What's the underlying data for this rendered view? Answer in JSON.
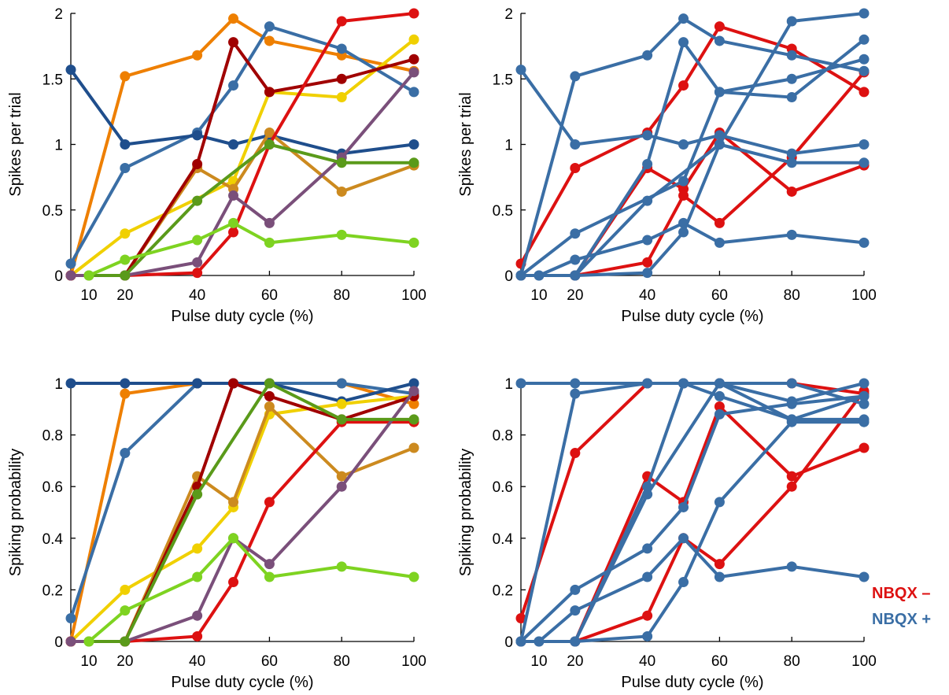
{
  "chart_data": [
    {
      "type": "line",
      "panel": "top-left",
      "xlabel": "Pulse duty cycle (%)",
      "ylabel": "Spikes per trial",
      "xlim": [
        5,
        100
      ],
      "ylim": [
        0,
        2
      ],
      "xticks": [
        10,
        20,
        40,
        60,
        80,
        100
      ],
      "yticks": [
        0,
        0.5,
        1,
        1.5,
        2
      ],
      "series": [
        {
          "color": "#ee7f00",
          "x": [
            5,
            20,
            40,
            50,
            60,
            80,
            100
          ],
          "y": [
            0,
            1.52,
            1.68,
            1.96,
            1.79,
            1.68,
            1.56
          ]
        },
        {
          "color": "#3a6ea5",
          "x": [
            5,
            20,
            40,
            50,
            60,
            80,
            100
          ],
          "y": [
            0.09,
            0.82,
            1.09,
            1.45,
            1.9,
            1.73,
            1.4
          ]
        },
        {
          "color": "#1f4e8c",
          "x": [
            5,
            20,
            40,
            50,
            60,
            80,
            100
          ],
          "y": [
            1.57,
            1.0,
            1.07,
            1.0,
            1.07,
            0.93,
            1.0
          ]
        },
        {
          "color": "#f0d000",
          "x": [
            5,
            20,
            50,
            60,
            80,
            100
          ],
          "y": [
            0,
            0.32,
            0.72,
            1.4,
            1.36,
            1.8
          ]
        },
        {
          "color": "#cc8a1f",
          "x": [
            5,
            20,
            40,
            50,
            60,
            80,
            100
          ],
          "y": [
            0,
            0,
            0.82,
            0.66,
            1.09,
            0.64,
            0.84
          ]
        },
        {
          "color": "#a00000",
          "x": [
            5,
            20,
            40,
            50,
            60,
            80,
            100
          ],
          "y": [
            0,
            0,
            0.85,
            1.78,
            1.4,
            1.5,
            1.65
          ]
        },
        {
          "color": "#dd1111",
          "x": [
            5,
            20,
            40,
            50,
            60,
            80,
            100
          ],
          "y": [
            0,
            0,
            0.02,
            0.33,
            1.0,
            1.94,
            2.0
          ]
        },
        {
          "color": "#7a4f7a",
          "x": [
            5,
            20,
            40,
            50,
            60,
            80,
            100
          ],
          "y": [
            0,
            0,
            0.1,
            0.61,
            0.4,
            0.9,
            1.55
          ]
        },
        {
          "color": "#5a9a1a",
          "x": [
            10,
            20,
            40,
            60,
            80,
            100
          ],
          "y": [
            0,
            0,
            0.57,
            1.0,
            0.86,
            0.86
          ]
        },
        {
          "color": "#7ed321",
          "x": [
            10,
            20,
            40,
            50,
            60,
            80,
            100
          ],
          "y": [
            0,
            0.12,
            0.27,
            0.4,
            0.25,
            0.31,
            0.25
          ]
        }
      ]
    },
    {
      "type": "line",
      "panel": "top-right",
      "xlabel": "Pulse duty cycle (%)",
      "ylabel": "Spikes per trial",
      "xlim": [
        5,
        100
      ],
      "ylim": [
        0,
        2
      ],
      "xticks": [
        10,
        20,
        40,
        60,
        80,
        100
      ],
      "yticks": [
        0,
        0.5,
        1,
        1.5,
        2
      ],
      "series": [
        {
          "group": "NBQX –",
          "color": "#dd1111",
          "x": [
            5,
            20,
            40,
            50,
            60,
            80,
            100
          ],
          "y": [
            0.09,
            0.82,
            1.09,
            1.45,
            1.9,
            1.73,
            1.4
          ]
        },
        {
          "group": "NBQX –",
          "color": "#dd1111",
          "x": [
            5,
            20,
            40,
            50,
            60,
            80,
            100
          ],
          "y": [
            0,
            0,
            0.82,
            0.66,
            1.09,
            0.64,
            0.84
          ]
        },
        {
          "group": "NBQX –",
          "color": "#dd1111",
          "x": [
            5,
            20,
            40,
            50,
            60,
            80,
            100
          ],
          "y": [
            0,
            0,
            0.1,
            0.61,
            0.4,
            0.9,
            1.55
          ]
        },
        {
          "group": "NBQX +",
          "color": "#3a6ea5",
          "x": [
            5,
            20,
            40,
            50,
            60,
            80,
            100
          ],
          "y": [
            0,
            1.52,
            1.68,
            1.96,
            1.79,
            1.68,
            1.56
          ]
        },
        {
          "group": "NBQX +",
          "color": "#3a6ea5",
          "x": [
            5,
            20,
            40,
            50,
            60,
            80,
            100
          ],
          "y": [
            1.57,
            1.0,
            1.07,
            1.0,
            1.07,
            0.93,
            1.0
          ]
        },
        {
          "group": "NBQX +",
          "color": "#3a6ea5",
          "x": [
            5,
            20,
            50,
            60,
            80,
            100
          ],
          "y": [
            0,
            0.32,
            0.72,
            1.4,
            1.36,
            1.8
          ]
        },
        {
          "group": "NBQX +",
          "color": "#3a6ea5",
          "x": [
            5,
            20,
            40,
            50,
            60,
            80,
            100
          ],
          "y": [
            0,
            0,
            0.85,
            1.78,
            1.4,
            1.5,
            1.65
          ]
        },
        {
          "group": "NBQX +",
          "color": "#3a6ea5",
          "x": [
            5,
            20,
            40,
            50,
            60,
            80,
            100
          ],
          "y": [
            0,
            0,
            0.02,
            0.33,
            1.0,
            1.94,
            2.0
          ]
        },
        {
          "group": "NBQX +",
          "color": "#3a6ea5",
          "x": [
            10,
            20,
            40,
            60,
            80,
            100
          ],
          "y": [
            0,
            0,
            0.57,
            1.0,
            0.86,
            0.86
          ]
        },
        {
          "group": "NBQX +",
          "color": "#3a6ea5",
          "x": [
            10,
            20,
            40,
            50,
            60,
            80,
            100
          ],
          "y": [
            0,
            0.12,
            0.27,
            0.4,
            0.25,
            0.31,
            0.25
          ]
        }
      ]
    },
    {
      "type": "line",
      "panel": "bottom-left",
      "xlabel": "Pulse duty cycle (%)",
      "ylabel": "Spiking probability",
      "xlim": [
        5,
        100
      ],
      "ylim": [
        0,
        1
      ],
      "xticks": [
        10,
        20,
        40,
        60,
        80,
        100
      ],
      "yticks": [
        0,
        0.2,
        0.4,
        0.6,
        0.8,
        1
      ],
      "series": [
        {
          "color": "#ee7f00",
          "x": [
            5,
            20,
            40,
            50,
            60,
            80,
            100
          ],
          "y": [
            0,
            0.96,
            1.0,
            1.0,
            1.0,
            1.0,
            0.92
          ]
        },
        {
          "color": "#3a6ea5",
          "x": [
            5,
            20,
            40,
            50,
            60,
            80,
            100
          ],
          "y": [
            0.09,
            0.73,
            1.0,
            1.0,
            1.0,
            1.0,
            0.96
          ]
        },
        {
          "color": "#1f4e8c",
          "x": [
            5,
            20,
            40,
            50,
            60,
            80,
            100
          ],
          "y": [
            1.0,
            1.0,
            1.0,
            1.0,
            1.0,
            0.93,
            1.0
          ]
        },
        {
          "color": "#f0d000",
          "x": [
            5,
            20,
            40,
            50,
            60,
            80,
            100
          ],
          "y": [
            0,
            0.2,
            0.36,
            0.52,
            0.88,
            0.92,
            0.95
          ]
        },
        {
          "color": "#cc8a1f",
          "x": [
            5,
            20,
            40,
            50,
            60,
            80,
            100
          ],
          "y": [
            0,
            0,
            0.64,
            0.54,
            0.91,
            0.64,
            0.75
          ]
        },
        {
          "color": "#a00000",
          "x": [
            5,
            20,
            40,
            50,
            60,
            80,
            100
          ],
          "y": [
            0,
            0,
            0.6,
            1.0,
            0.95,
            0.86,
            0.95
          ]
        },
        {
          "color": "#dd1111",
          "x": [
            5,
            20,
            40,
            50,
            60,
            80,
            100
          ],
          "y": [
            0,
            0,
            0.02,
            0.23,
            0.54,
            0.85,
            0.85
          ]
        },
        {
          "color": "#7a4f7a",
          "x": [
            5,
            20,
            40,
            50,
            60,
            80,
            100
          ],
          "y": [
            0,
            0,
            0.1,
            0.4,
            0.3,
            0.6,
            0.97
          ]
        },
        {
          "color": "#5a9a1a",
          "x": [
            10,
            20,
            40,
            60,
            80,
            100
          ],
          "y": [
            0,
            0,
            0.57,
            1.0,
            0.86,
            0.86
          ]
        },
        {
          "color": "#7ed321",
          "x": [
            10,
            20,
            40,
            50,
            60,
            80,
            100
          ],
          "y": [
            0,
            0.12,
            0.25,
            0.4,
            0.25,
            0.29,
            0.25
          ]
        }
      ]
    },
    {
      "type": "line",
      "panel": "bottom-right",
      "xlabel": "Pulse duty cycle (%)",
      "ylabel": "Spiking probability",
      "xlim": [
        5,
        100
      ],
      "ylim": [
        0,
        1
      ],
      "xticks": [
        10,
        20,
        40,
        60,
        80,
        100
      ],
      "yticks": [
        0,
        0.2,
        0.4,
        0.6,
        0.8,
        1
      ],
      "series": [
        {
          "group": "NBQX –",
          "color": "#dd1111",
          "x": [
            5,
            20,
            40,
            50,
            60,
            80,
            100
          ],
          "y": [
            0.09,
            0.73,
            1.0,
            1.0,
            1.0,
            1.0,
            0.96
          ]
        },
        {
          "group": "NBQX –",
          "color": "#dd1111",
          "x": [
            5,
            20,
            40,
            50,
            60,
            80,
            100
          ],
          "y": [
            0,
            0,
            0.64,
            0.54,
            0.91,
            0.64,
            0.75
          ]
        },
        {
          "group": "NBQX –",
          "color": "#dd1111",
          "x": [
            5,
            20,
            40,
            50,
            60,
            80,
            100
          ],
          "y": [
            0,
            0,
            0.1,
            0.4,
            0.3,
            0.6,
            0.97
          ]
        },
        {
          "group": "NBQX +",
          "color": "#3a6ea5",
          "x": [
            5,
            20,
            40,
            50,
            60,
            80,
            100
          ],
          "y": [
            0,
            0.96,
            1.0,
            1.0,
            1.0,
            1.0,
            0.92
          ]
        },
        {
          "group": "NBQX +",
          "color": "#3a6ea5",
          "x": [
            5,
            20,
            40,
            50,
            60,
            80,
            100
          ],
          "y": [
            1.0,
            1.0,
            1.0,
            1.0,
            1.0,
            0.93,
            1.0
          ]
        },
        {
          "group": "NBQX +",
          "color": "#3a6ea5",
          "x": [
            5,
            20,
            40,
            50,
            60,
            80,
            100
          ],
          "y": [
            0,
            0.2,
            0.36,
            0.52,
            0.88,
            0.92,
            0.95
          ]
        },
        {
          "group": "NBQX +",
          "color": "#3a6ea5",
          "x": [
            5,
            20,
            40,
            50,
            60,
            80,
            100
          ],
          "y": [
            0,
            0,
            0.6,
            1.0,
            0.95,
            0.86,
            0.95
          ]
        },
        {
          "group": "NBQX +",
          "color": "#3a6ea5",
          "x": [
            5,
            20,
            40,
            50,
            60,
            80,
            100
          ],
          "y": [
            0,
            0,
            0.02,
            0.23,
            0.54,
            0.85,
            0.85
          ]
        },
        {
          "group": "NBQX +",
          "color": "#3a6ea5",
          "x": [
            10,
            20,
            40,
            60,
            80,
            100
          ],
          "y": [
            0,
            0,
            0.57,
            1.0,
            0.86,
            0.86
          ]
        },
        {
          "group": "NBQX +",
          "color": "#3a6ea5",
          "x": [
            10,
            20,
            40,
            50,
            60,
            80,
            100
          ],
          "y": [
            0,
            0.12,
            0.25,
            0.4,
            0.25,
            0.29,
            0.25
          ]
        }
      ]
    }
  ],
  "legend": {
    "entries": [
      {
        "label": "NBQX –",
        "color": "#dd1111"
      },
      {
        "label": "NBQX +",
        "color": "#3a6ea5"
      }
    ]
  }
}
